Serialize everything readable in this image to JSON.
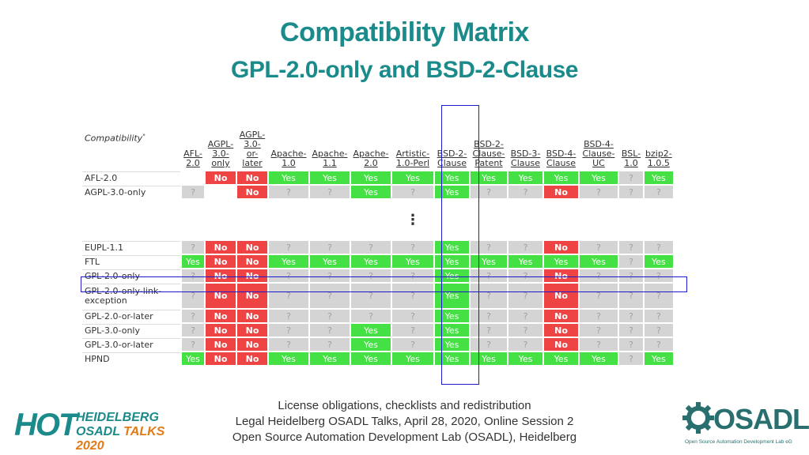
{
  "title": "Compatibility Matrix",
  "subtitle": "GPL-2.0-only and BSD-2-Clause",
  "matrix": {
    "corner_label": "Compatibility",
    "corner_mark": "*",
    "columns": [
      "AFL-2.0",
      "AGPL-3.0-only",
      "AGPL-3.0-or-later",
      "Apache-1.0",
      "Apache-1.1",
      "Apache-2.0",
      "Artistic-1.0-Perl",
      "BSD-2-Clause",
      "BSD-2-Clause-Patent",
      "BSD-3-Clause",
      "BSD-4-Clause",
      "BSD-4-Clause-UC",
      "BSL-1.0",
      "bzip2-1.0.5"
    ],
    "gap_marker": "⋮",
    "rows_top": [
      {
        "label": "AFL-2.0",
        "cells": [
          "",
          "No",
          "No",
          "Yes",
          "Yes",
          "Yes",
          "Yes",
          "Yes",
          "Yes",
          "Yes",
          "Yes",
          "Yes",
          "?",
          "Yes"
        ]
      },
      {
        "label": "AGPL-3.0-only",
        "cells": [
          "?",
          "",
          "No",
          "?",
          "?",
          "Yes",
          "?",
          "Yes",
          "?",
          "?",
          "No",
          "?",
          "?",
          "?"
        ]
      }
    ],
    "rows_bottom": [
      {
        "label": "EUPL-1.1",
        "cells": [
          "?",
          "No",
          "No",
          "?",
          "?",
          "?",
          "?",
          "Yes",
          "?",
          "?",
          "No",
          "?",
          "?",
          "?"
        ]
      },
      {
        "label": "FTL",
        "cells": [
          "Yes",
          "No",
          "No",
          "Yes",
          "Yes",
          "Yes",
          "Yes",
          "Yes",
          "Yes",
          "Yes",
          "Yes",
          "Yes",
          "?",
          "Yes"
        ]
      },
      {
        "label": "GPL-2.0-only",
        "cells": [
          "?",
          "No",
          "No",
          "?",
          "?",
          "?",
          "?",
          "Yes",
          "?",
          "?",
          "No",
          "?",
          "?",
          "?"
        ]
      },
      {
        "label": "GPL-2.0-only-link-exception",
        "cells": [
          "?",
          "No",
          "No",
          "?",
          "?",
          "?",
          "?",
          "Yes",
          "?",
          "?",
          "No",
          "?",
          "?",
          "?"
        ]
      },
      {
        "label": "GPL-2.0-or-later",
        "cells": [
          "?",
          "No",
          "No",
          "?",
          "?",
          "?",
          "?",
          "Yes",
          "?",
          "?",
          "No",
          "?",
          "?",
          "?"
        ]
      },
      {
        "label": "GPL-3.0-only",
        "cells": [
          "?",
          "No",
          "No",
          "?",
          "?",
          "Yes",
          "?",
          "Yes",
          "?",
          "?",
          "No",
          "?",
          "?",
          "?"
        ]
      },
      {
        "label": "GPL-3.0-or-later",
        "cells": [
          "?",
          "No",
          "No",
          "?",
          "?",
          "Yes",
          "?",
          "Yes",
          "?",
          "?",
          "No",
          "?",
          "?",
          "?"
        ]
      },
      {
        "label": "HPND",
        "cells": [
          "Yes",
          "No",
          "No",
          "Yes",
          "Yes",
          "Yes",
          "Yes",
          "Yes",
          "Yes",
          "Yes",
          "Yes",
          "Yes",
          "?",
          "Yes"
        ]
      }
    ],
    "colors": {
      "yes": "#44e044",
      "no": "#ef4444",
      "unknown": "#d4d4d4",
      "highlight": "#1a1acc"
    }
  },
  "footer": {
    "line1": "License obligations, checklists and redistribution",
    "line2": "Legal Heidelberg OSADL Talks, April 28, 2020, Online Session 2",
    "line3": "Open Source Automation Development Lab (OSADL), Heidelberg"
  },
  "logo_hot": {
    "mark": "HOT",
    "line1": "HEIDELBERG",
    "line2a": "OSADL",
    "line2b": "TALKS 2020"
  },
  "logo_osadl": {
    "name": "OSADL",
    "tagline": "Open Source Automation Development Lab eG"
  }
}
